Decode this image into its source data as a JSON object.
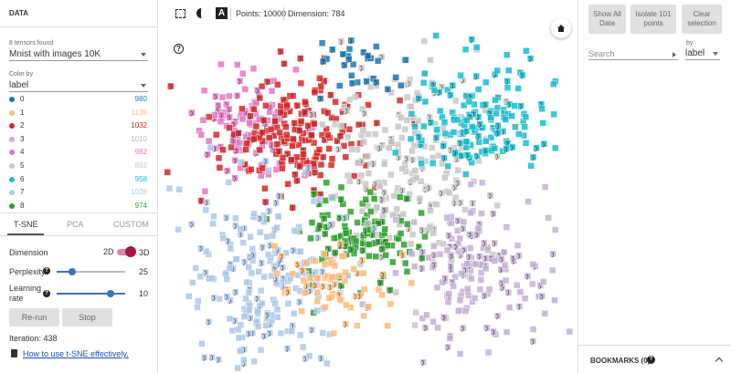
{
  "left_panel": {
    "title": "DATA",
    "tensors_found": "8 tensors found",
    "tensor": "Mnist with images 10K",
    "color_by_label": "Color by",
    "color_by": "label",
    "legend": [
      {
        "label": "0",
        "count": 980,
        "color": "#1f77b4"
      },
      {
        "label": "1",
        "count": 1135,
        "color": "#ffbb78"
      },
      {
        "label": "2",
        "count": 1032,
        "color": "#d62728"
      },
      {
        "label": "3",
        "count": 1010,
        "color": "#c5b0d5"
      },
      {
        "label": "4",
        "count": 982,
        "color": "#e377c2"
      },
      {
        "label": "5",
        "count": 892,
        "color": "#c7c7c7"
      },
      {
        "label": "6",
        "count": 958,
        "color": "#17becf"
      },
      {
        "label": "7",
        "count": 1028,
        "color": "#aec7e8"
      },
      {
        "label": "8",
        "count": 974,
        "color": "#2ca02c"
      }
    ],
    "tabs": [
      "T-SNE",
      "PCA",
      "CUSTOM"
    ],
    "tsne": {
      "dimension_label": "Dimension",
      "dim_2d": "2D",
      "dim_3d": "3D",
      "perplexity_label": "Perplexity",
      "perplexity": 25,
      "learning_rate_label": "Learning rate",
      "learning_rate": 10,
      "rerun": "Re-run",
      "stop": "Stop",
      "iteration": "Iteration: 438",
      "help_link": "How to use t-SNE effectively."
    }
  },
  "toolbar": {
    "label_icon": "A",
    "points": "Points: 10000",
    "dimension": "Dimension: 784"
  },
  "help_icon": "?",
  "right_panel": {
    "buttons": [
      "Show All Data",
      "Isolate 101 points",
      "Clear selection"
    ],
    "search_placeholder": "Search",
    "by_label": "by",
    "by": "label",
    "bookmarks": "BOOKMARKS (0)"
  }
}
